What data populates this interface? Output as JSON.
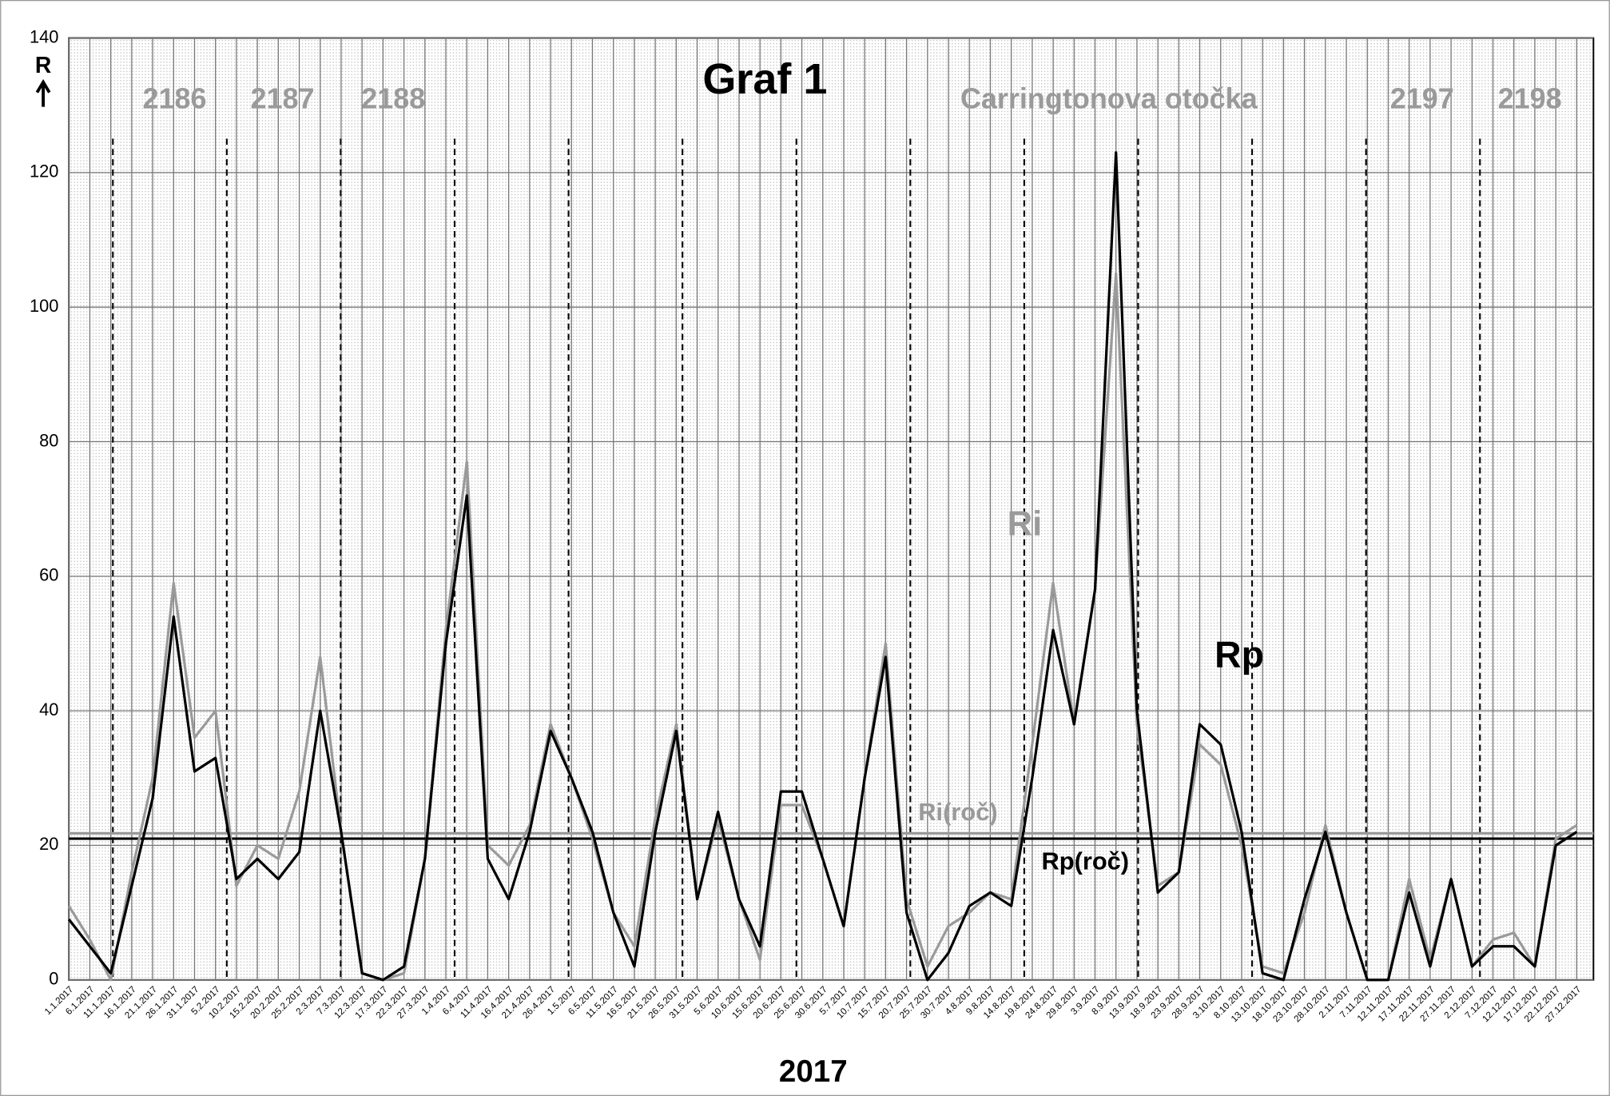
{
  "chart_data": {
    "type": "line",
    "title": "Graf 1",
    "xlabel": "2017",
    "ylabel": "R",
    "x": [
      "1.1.2017",
      "6.1.2017",
      "11.1.2017",
      "16.1.2017",
      "21.1.2017",
      "26.1.2017",
      "31.1.2017",
      "5.2.2017",
      "10.2.2017",
      "15.2.2017",
      "20.2.2017",
      "25.2.2017",
      "2.3.2017",
      "7.3.2017",
      "12.3.2017",
      "17.3.2017",
      "22.3.2017",
      "27.3.2017",
      "1.4.2017",
      "6.4.2017",
      "11.4.2017",
      "16.4.2017",
      "21.4.2017",
      "26.4.2017",
      "1.5.2017",
      "6.5.2017",
      "11.5.2017",
      "16.5.2017",
      "21.5.2017",
      "26.5.2017",
      "31.5.2017",
      "5.6.2017",
      "10.6.2017",
      "15.6.2017",
      "20.6.2017",
      "25.6.2017",
      "30.6.2017",
      "5.7.2017",
      "10.7.2017",
      "15.7.2017",
      "20.7.2017",
      "25.7.2017",
      "30.7.2017",
      "4.8.2017",
      "9.8.2017",
      "14.8.2017",
      "19.8.2017",
      "24.8.2017",
      "29.8.2017",
      "3.9.2017",
      "8.9.2017",
      "13.9.2017",
      "18.9.2017",
      "23.9.2017",
      "28.9.2017",
      "3.10.2017",
      "8.10.2017",
      "13.10.2017",
      "18.10.2017",
      "23.10.2017",
      "28.10.2017",
      "2.11.2017",
      "7.11.2017",
      "12.11.2017",
      "17.11.2017",
      "22.11.2017",
      "27.11.2017",
      "2.12.2017",
      "7.12.2017",
      "12.12.2017",
      "17.12.2017",
      "22.12.2017",
      "27.12.2017"
    ],
    "xlim": [
      "1.1.2017",
      "31.12.2017"
    ],
    "series": [
      {
        "name": "Ri",
        "color": "#9a9a9a",
        "values": [
          11,
          6,
          0,
          16,
          30,
          59,
          36,
          40,
          14,
          20,
          18,
          28,
          48,
          22,
          1,
          0,
          1,
          18,
          52,
          77,
          20,
          17,
          23,
          38,
          30,
          21,
          10,
          5,
          24,
          38,
          12,
          24,
          12,
          3,
          26,
          26,
          18,
          8,
          30,
          50,
          12,
          2,
          8,
          10,
          13,
          12,
          35,
          59,
          38,
          58,
          105,
          38,
          14,
          16,
          35,
          32,
          20,
          2,
          1,
          10,
          23,
          10,
          0,
          0,
          15,
          3,
          15,
          2,
          6,
          7,
          2,
          21,
          23
        ]
      },
      {
        "name": "Rp",
        "color": "#000000",
        "values": [
          9,
          5,
          1,
          14,
          27,
          54,
          31,
          33,
          15,
          18,
          15,
          19,
          40,
          22,
          1,
          0,
          2,
          18,
          50,
          72,
          18,
          12,
          22,
          37,
          30,
          22,
          10,
          2,
          22,
          37,
          12,
          25,
          12,
          5,
          28,
          28,
          18,
          8,
          30,
          48,
          10,
          0,
          4,
          11,
          13,
          11,
          30,
          52,
          38,
          58,
          123,
          40,
          13,
          16,
          38,
          35,
          22,
          1,
          0,
          12,
          22,
          10,
          0,
          0,
          13,
          2,
          15,
          2,
          5,
          5,
          2,
          20,
          22
        ]
      }
    ],
    "reference_lines": [
      {
        "name": "Ri(roč)",
        "value": 21.8,
        "color": "#9a9a9a"
      },
      {
        "name": "Rp(roč)",
        "value": 21,
        "color": "#000000"
      }
    ],
    "rotation_labels": [
      "2186",
      "2187",
      "2188",
      "Carringtonova otočka",
      "2197",
      "2198"
    ],
    "ylim": [
      0,
      140
    ],
    "yticks": [
      0,
      20,
      40,
      60,
      80,
      100,
      120,
      140
    ],
    "grid": true
  }
}
